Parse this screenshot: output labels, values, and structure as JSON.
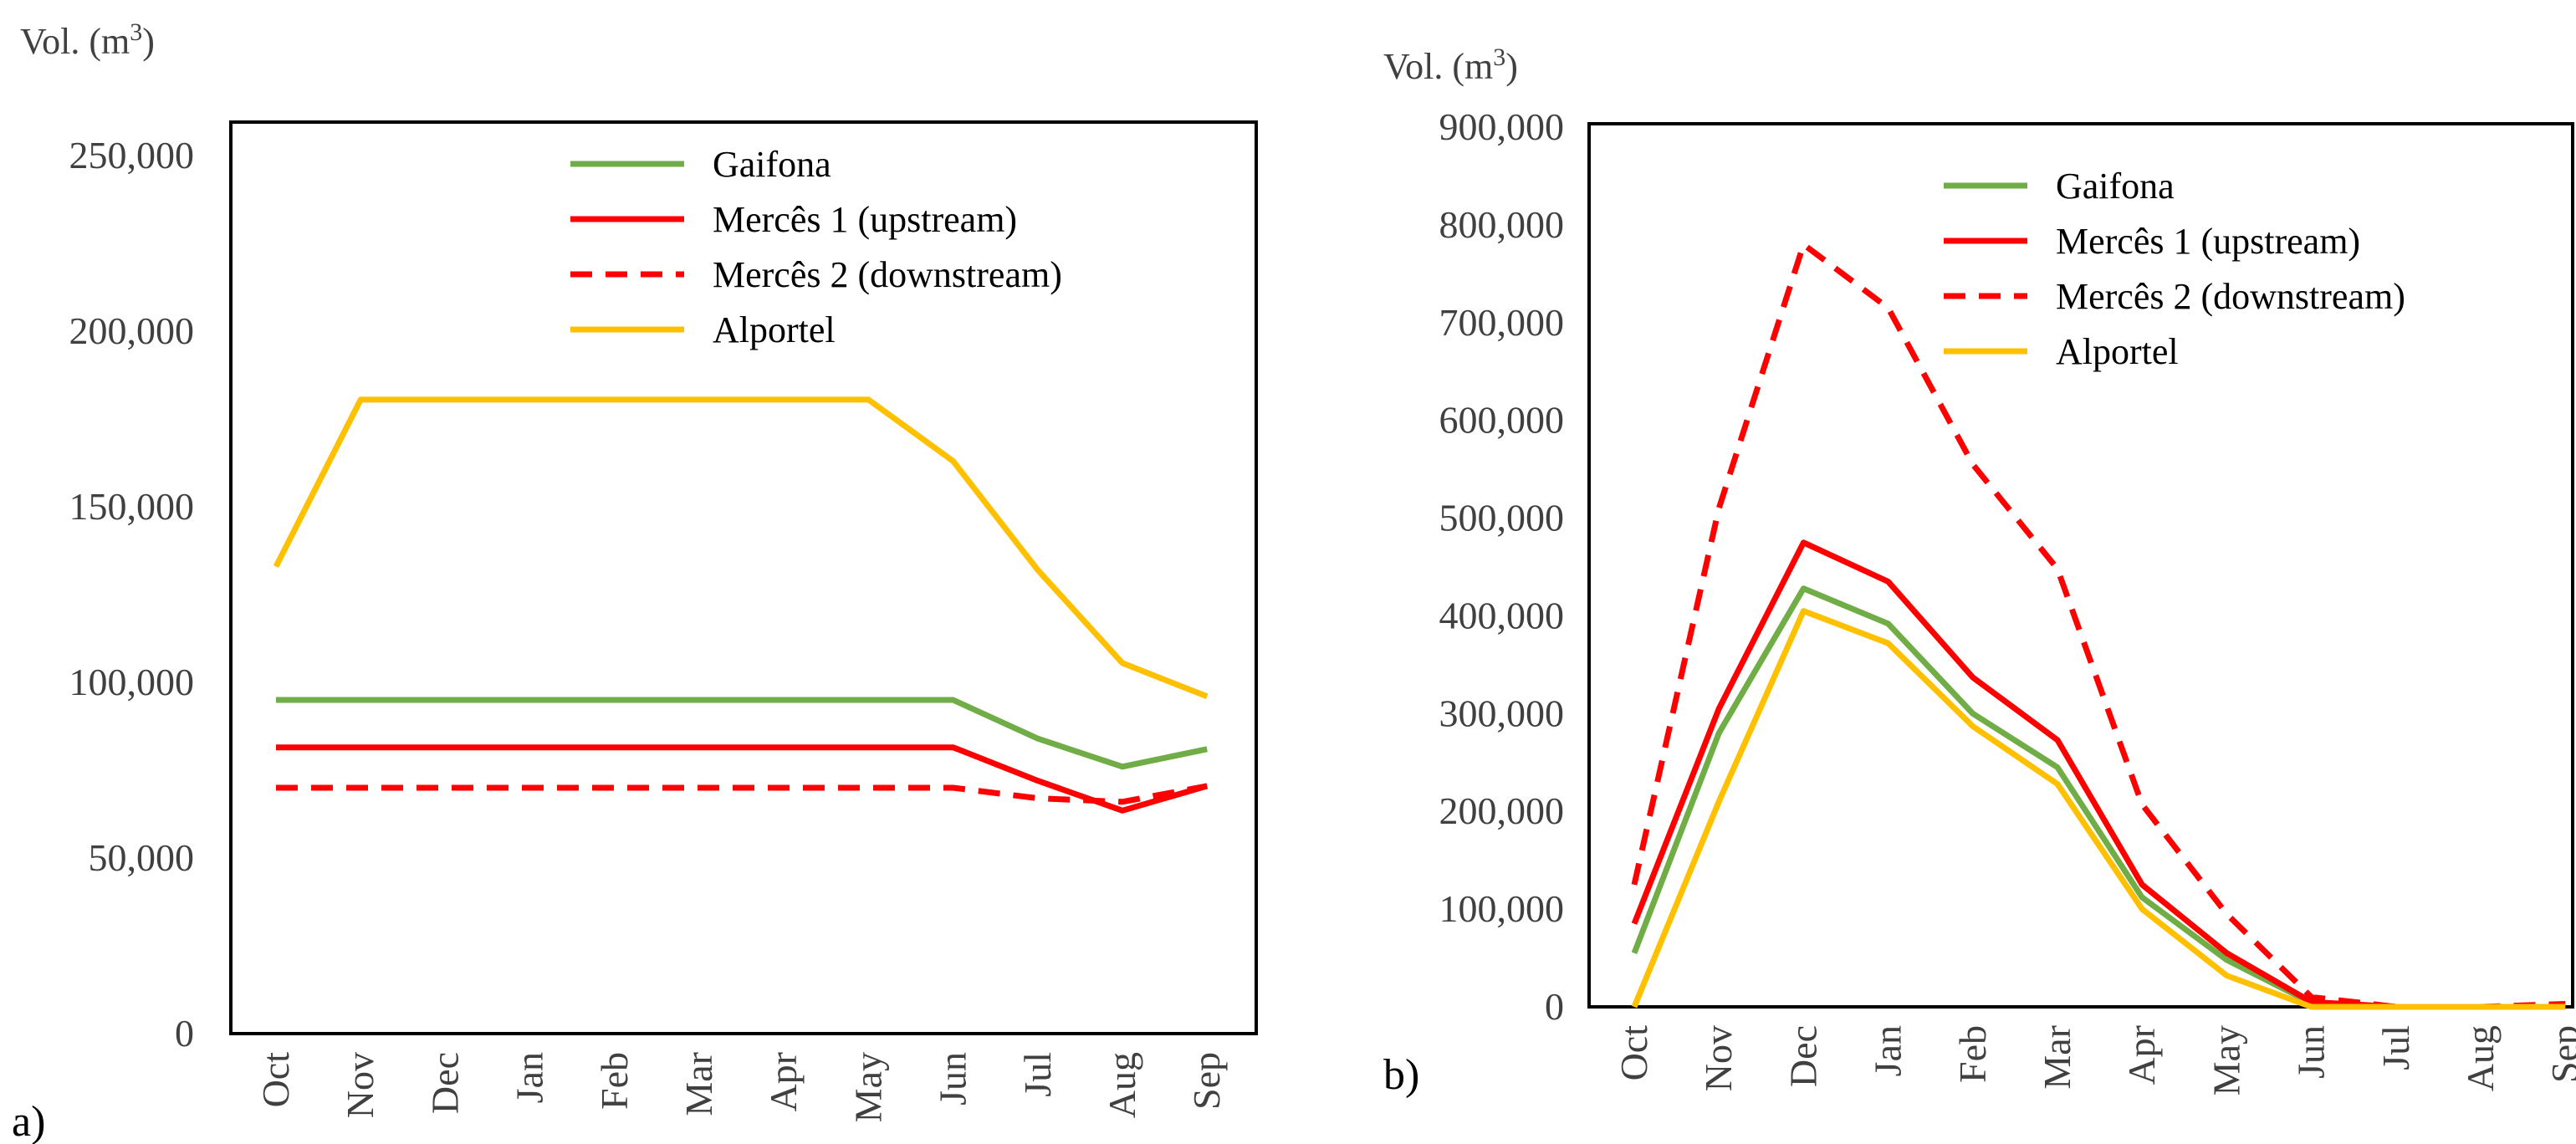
{
  "chart_data": [
    {
      "panel_label": "a)",
      "type": "line",
      "ylabel": "Vol. (m³)",
      "ylabel_text": "Vol. (m",
      "ylabel_sup": "3",
      "ylabel_close": ")",
      "ylim": [
        0,
        250000
      ],
      "yticks": [
        0,
        50000,
        100000,
        150000,
        200000,
        250000
      ],
      "ytick_labels": [
        "0",
        "50,000",
        "100,000",
        "150,000",
        "200,000",
        "250,000"
      ],
      "grid": false,
      "legend_position": "top-right",
      "categories": [
        "Oct",
        "Nov",
        "Dec",
        "Jan",
        "Feb",
        "Mar",
        "Apr",
        "May",
        "Jun",
        "Jul",
        "Aug",
        "Sep"
      ],
      "series": [
        {
          "name": "Gaifona",
          "color": "#70ad47",
          "dash": "solid",
          "values": [
            95000,
            95000,
            95000,
            95000,
            95000,
            95000,
            95000,
            95000,
            95000,
            84000,
            76000,
            81000
          ]
        },
        {
          "name": "Mercês 1 (upstream)",
          "color": "#ff0000",
          "dash": "solid",
          "values": [
            81500,
            81500,
            81500,
            81500,
            81500,
            81500,
            81500,
            81500,
            81500,
            72000,
            63500,
            70500
          ]
        },
        {
          "name": "Mercês 2 (downstream)",
          "color": "#ff0000",
          "dash": "dashed",
          "values": [
            70000,
            70000,
            70000,
            70000,
            70000,
            70000,
            70000,
            70000,
            70000,
            67000,
            66000,
            70500
          ]
        },
        {
          "name": "Alportel",
          "color": "#ffc000",
          "dash": "solid",
          "values": [
            133000,
            180500,
            180500,
            180500,
            180500,
            180500,
            180500,
            180500,
            163000,
            132000,
            105500,
            96000
          ]
        }
      ]
    },
    {
      "panel_label": "b)",
      "type": "line",
      "ylabel": "Vol. (m³)",
      "ylabel_text": "Vol. (m",
      "ylabel_sup": "3",
      "ylabel_close": ")",
      "ylim": [
        0,
        900000
      ],
      "yticks": [
        0,
        100000,
        200000,
        300000,
        400000,
        500000,
        600000,
        700000,
        800000,
        900000
      ],
      "ytick_labels": [
        "0",
        "100,000",
        "200,000",
        "300,000",
        "400,000",
        "500,000",
        "600,000",
        "700,000",
        "800,000",
        "900,000"
      ],
      "grid": false,
      "legend_position": "top-right",
      "categories": [
        "Oct",
        "Nov",
        "Dec",
        "Jan",
        "Feb",
        "Mar",
        "Apr",
        "May",
        "Jun",
        "Jul",
        "Aug",
        "Sep"
      ],
      "series": [
        {
          "name": "Gaifona",
          "color": "#70ad47",
          "dash": "solid",
          "values": [
            55000,
            280000,
            428000,
            392000,
            300000,
            245000,
            112000,
            48000,
            4000,
            0,
            0,
            0
          ]
        },
        {
          "name": "Mercês 1 (upstream)",
          "color": "#ff0000",
          "dash": "solid",
          "values": [
            85000,
            305000,
            475000,
            435000,
            337000,
            273000,
            125000,
            55000,
            5000,
            0,
            0,
            0
          ]
        },
        {
          "name": "Mercês 2 (downstream)",
          "color": "#ff0000",
          "dash": "dashed",
          "values": [
            125000,
            510000,
            780000,
            715000,
            555000,
            448000,
            207000,
            95000,
            10000,
            0,
            0,
            3000
          ]
        },
        {
          "name": "Alportel",
          "color": "#ffc000",
          "dash": "solid",
          "values": [
            0,
            210000,
            405000,
            372000,
            287000,
            228000,
            100000,
            32000,
            0,
            0,
            0,
            0
          ]
        }
      ]
    }
  ]
}
